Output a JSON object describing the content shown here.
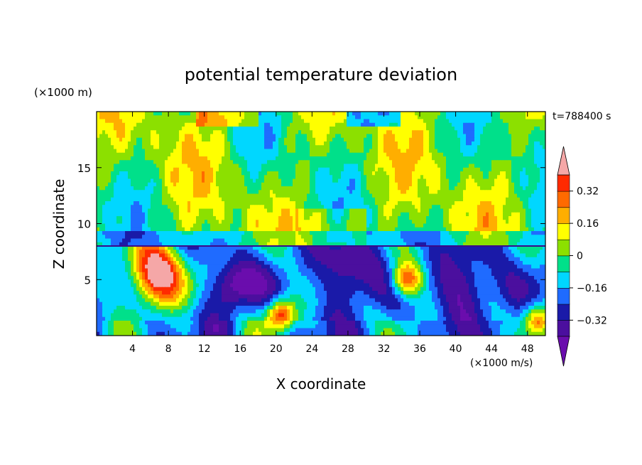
{
  "chart_data": {
    "type": "heatmap",
    "title": "potential temperature deviation",
    "xlabel": "X coordinate",
    "ylabel": "Z coordinate",
    "x_unit": "(×1000 m/s)",
    "y_unit": "(×1000 m)",
    "time_label": "t=788400 s",
    "xlim": [
      0,
      50
    ],
    "ylim": [
      0,
      20
    ],
    "x_ticks": [
      4,
      8,
      12,
      16,
      20,
      24,
      28,
      32,
      36,
      40,
      44,
      48
    ],
    "y_ticks": [
      5,
      10,
      15
    ],
    "colorbar": {
      "levels": [
        -0.4,
        -0.32,
        -0.24,
        -0.16,
        -0.08,
        0,
        0.08,
        0.16,
        0.24,
        0.32,
        0.4
      ],
      "labels": [
        "0.32",
        "0.16",
        "0",
        "−0.16",
        "−0.32"
      ],
      "label_values": [
        0.32,
        0.16,
        0,
        -0.16,
        -0.32
      ],
      "colors": [
        "#6a0dad",
        "#4b0f9e",
        "#1a1aa8",
        "#1f6bff",
        "#00d7ff",
        "#00e08a",
        "#8ce000",
        "#ffff00",
        "#ffae00",
        "#ff6a00",
        "#ff2a00"
      ],
      "over_color": "#f5a7a7",
      "under_color": "#6a0dad"
    },
    "field_description_values": {
      "upper_layer_z_range": [
        8,
        20
      ],
      "lower_layer_z_range": [
        0,
        8
      ],
      "inversion_z": 8
    }
  }
}
